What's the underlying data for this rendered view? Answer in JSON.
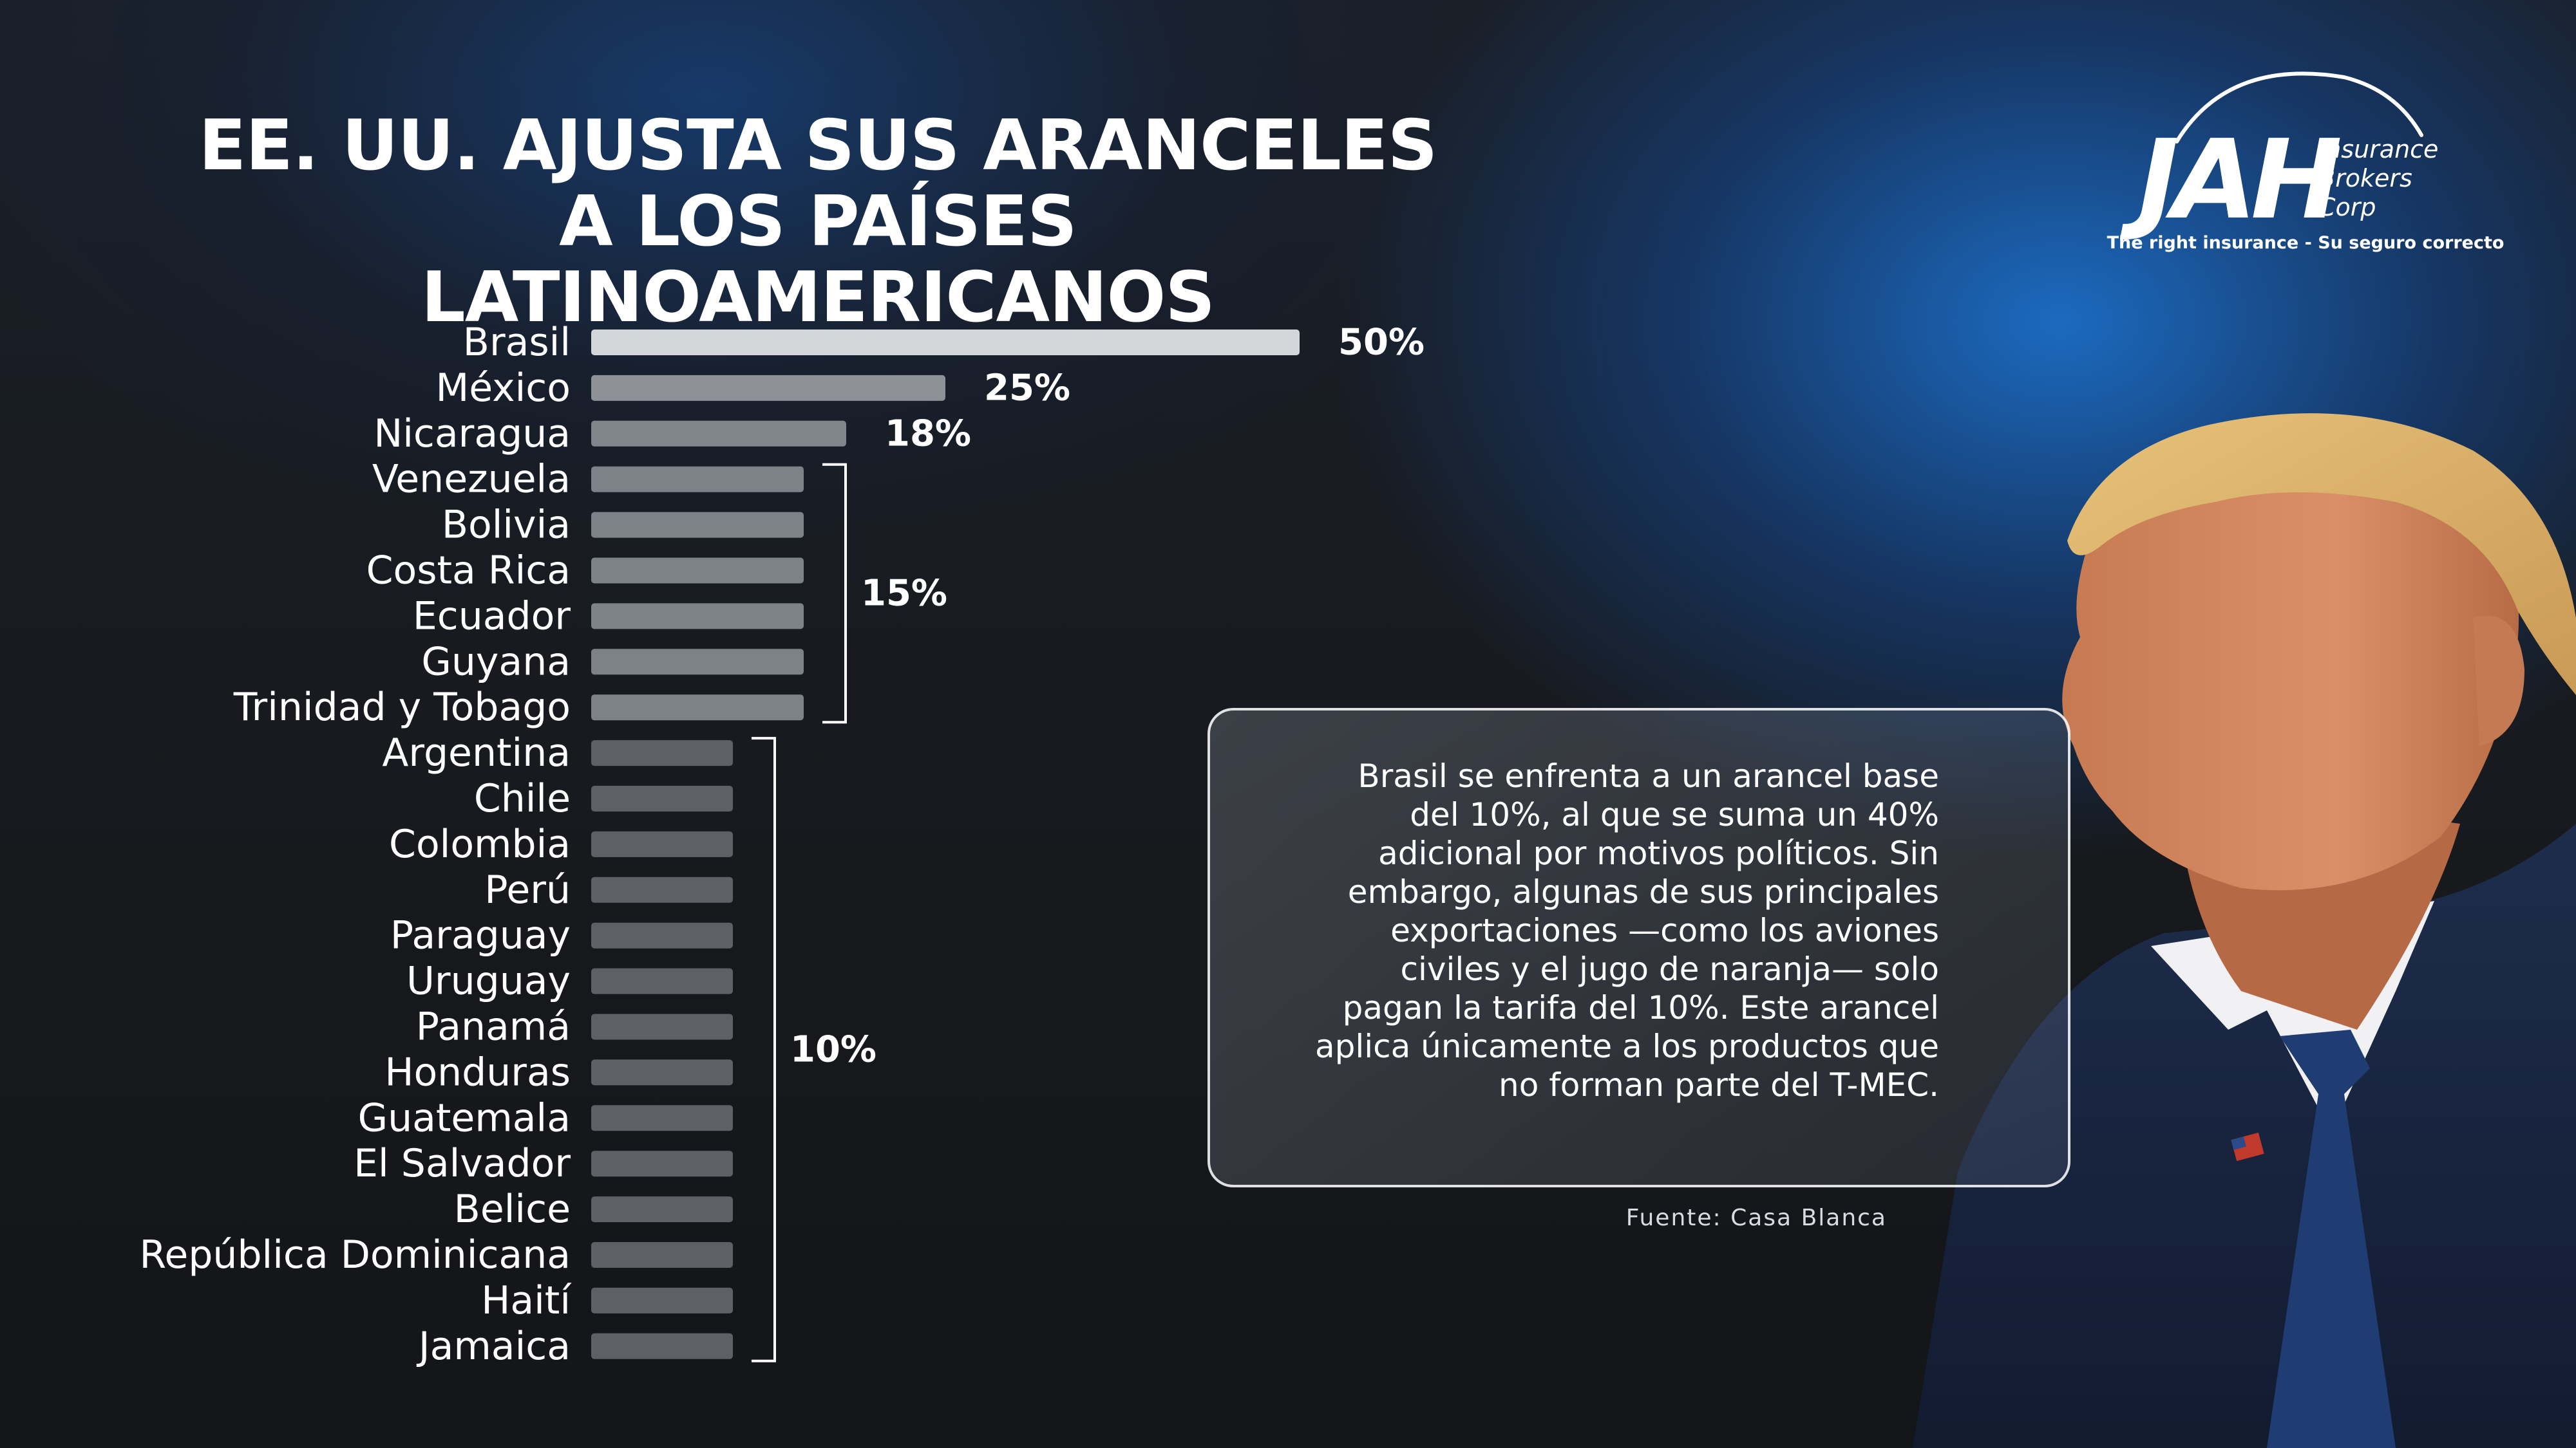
{
  "title": "EE. UU. AJUSTA SUS ARANCELES A LOS PAÍSES LATINOAMERICANOS",
  "logo": {
    "mark": "JAH",
    "words": [
      "Insurance",
      "Brokers",
      "Corp"
    ],
    "tagline": "The right insurance - Su seguro correcto"
  },
  "note": "Brasil se enfrenta a un arancel base del 10%, al que se suma un 40% adicional por motivos políticos. Sin embargo, algunas de sus principales exportaciones —como los aviones civiles y el jugo de naranja— solo pagan la tarifa del 10%. Este arancel aplica únicamente a los productos que no forman parte del T-MEC.",
  "source": "Fuente: Casa Blanca",
  "colors": {
    "background": "#16181c",
    "accent_blue": "#1c6ec8",
    "bar_brasil": "#d4d6da",
    "bar_mexico": "#8d9197",
    "bar_nicaragua": "#80858c",
    "bar_15": "#7d8289",
    "bar_10": "#5d6065"
  },
  "chart_data": {
    "type": "bar",
    "orientation": "horizontal",
    "categories": [
      "Brasil",
      "México",
      "Nicaragua",
      "Venezuela",
      "Bolivia",
      "Costa Rica",
      "Ecuador",
      "Guyana",
      "Trinidad y Tobago",
      "Argentina",
      "Chile",
      "Colombia",
      "Perú",
      "Paraguay",
      "Uruguay",
      "Panamá",
      "Honduras",
      "Guatemala",
      "El Salvador",
      "Belice",
      "República Dominicana",
      "Haití",
      "Jamaica"
    ],
    "values": [
      50,
      25,
      18,
      15,
      15,
      15,
      15,
      15,
      15,
      10,
      10,
      10,
      10,
      10,
      10,
      10,
      10,
      10,
      10,
      10,
      10,
      10,
      10
    ],
    "value_suffix": "%",
    "bar_colors": [
      "#d4d6da",
      "#8d9197",
      "#80858c",
      "#7d8289",
      "#7d8289",
      "#7d8289",
      "#7d8289",
      "#7d8289",
      "#7d8289",
      "#5d6065",
      "#5d6065",
      "#5d6065",
      "#5d6065",
      "#5d6065",
      "#5d6065",
      "#5d6065",
      "#5d6065",
      "#5d6065",
      "#5d6065",
      "#5d6065",
      "#5d6065",
      "#5d6065",
      "#5d6065"
    ],
    "individual_labels": [
      "50%",
      "25%",
      "18%"
    ],
    "groups": [
      {
        "label": "15%",
        "value": 15,
        "from": "Venezuela",
        "to": "Trinidad y Tobago"
      },
      {
        "label": "10%",
        "value": 10,
        "from": "Argentina",
        "to": "Jamaica"
      }
    ],
    "xlim": [
      0,
      50
    ],
    "grid": false,
    "legend": "none",
    "title": "EE. UU. AJUSTA SUS ARANCELES A LOS PAÍSES LATINOAMERICANOS"
  }
}
